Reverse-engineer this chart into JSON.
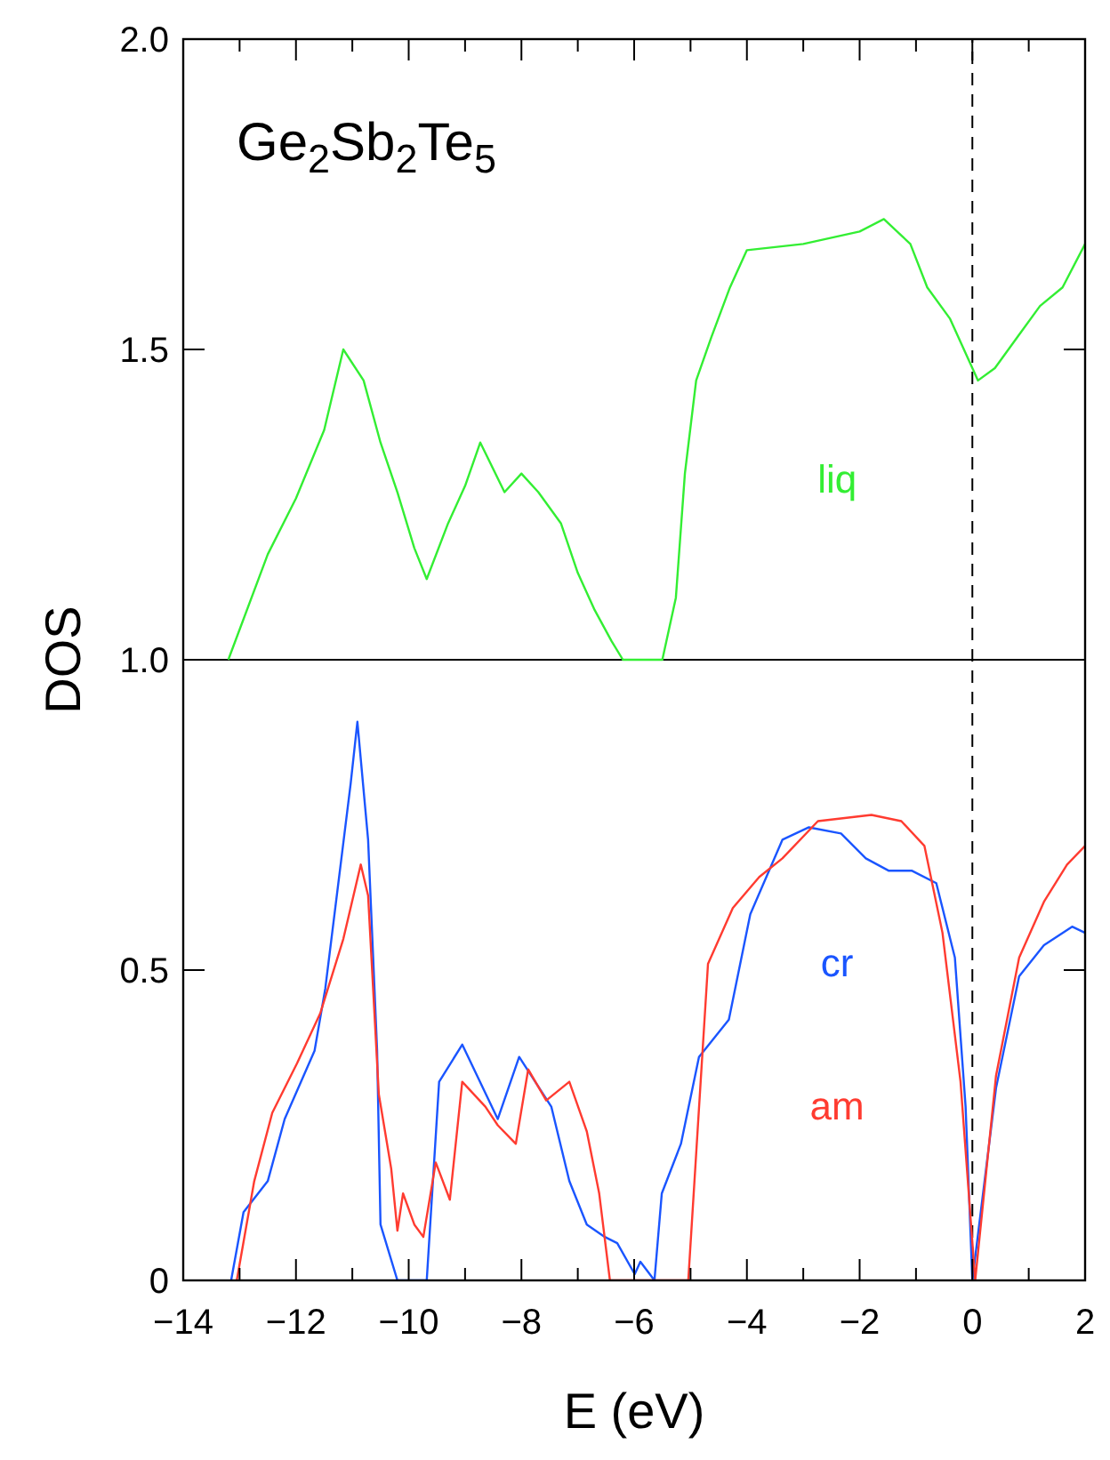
{
  "chart_data": {
    "type": "line",
    "title": "Ge$_{2}$Sb$_{2}$Te$_{5}$",
    "xlabel": "E (eV)",
    "ylabel": "DOS",
    "xlim": [
      -14,
      2
    ],
    "ylim": [
      0,
      2
    ],
    "xticks": [
      {
        "value": -14,
        "label": "−14"
      },
      {
        "value": -13,
        "label": null
      },
      {
        "value": -12,
        "label": "−12"
      },
      {
        "value": -11,
        "label": null
      },
      {
        "value": -10,
        "label": "−10"
      },
      {
        "value": -9,
        "label": null
      },
      {
        "value": -8,
        "label": "−8"
      },
      {
        "value": -7,
        "label": null
      },
      {
        "value": -6,
        "label": "−6"
      },
      {
        "value": -5,
        "label": null
      },
      {
        "value": -4,
        "label": "−4"
      },
      {
        "value": -3,
        "label": null
      },
      {
        "value": -2,
        "label": "−2"
      },
      {
        "value": -1,
        "label": null
      },
      0,
      {
        "value": 1,
        "label": null
      },
      2
    ],
    "yticks": [
      0,
      0.5,
      {
        "value": 1,
        "label": "1.0"
      },
      1.5,
      {
        "value": 2,
        "label": "2.0"
      }
    ],
    "grid": false,
    "ref_lines": [
      {
        "axis": "y",
        "value": 1,
        "color": "#000000",
        "line_style": "solid"
      },
      {
        "axis": "x",
        "value": 0,
        "color": "#000000",
        "line_style": "dashed"
      }
    ],
    "series": [
      {
        "name": "liq",
        "color": "#33ee33",
        "x": [
          -13.2,
          -12.5,
          -12,
          -11.5,
          -11.16,
          -10.8,
          -10.5,
          -10.2,
          -9.9,
          -9.68,
          -9.3,
          -9,
          -8.73,
          -8.3,
          -8,
          -7.7,
          -7.3,
          -7,
          -6.7,
          -6.4,
          -6.2,
          -5.5,
          -5.26,
          -5.1,
          -4.9,
          -4.63,
          -4.3,
          -4,
          -3,
          -2,
          -1.57,
          -1.1,
          -0.8,
          -0.4,
          0.1,
          0.4,
          0.8,
          1.2,
          1.6,
          2
        ],
        "values": [
          1.0,
          1.17,
          1.26,
          1.37,
          1.5,
          1.45,
          1.35,
          1.27,
          1.18,
          1.13,
          1.22,
          1.28,
          1.35,
          1.27,
          1.3,
          1.27,
          1.22,
          1.14,
          1.08,
          1.03,
          1.0,
          1.0,
          1.1,
          1.3,
          1.45,
          1.52,
          1.6,
          1.66,
          1.67,
          1.69,
          1.71,
          1.67,
          1.6,
          1.55,
          1.45,
          1.47,
          1.52,
          1.57,
          1.6,
          1.67
        ]
      },
      {
        "name": "cr",
        "color": "#1a55ff",
        "x": [
          -13.15,
          -12.93,
          -12.5,
          -12.2,
          -11.67,
          -11.48,
          -11.03,
          -10.91,
          -10.72,
          -10.56,
          -10.5,
          -10.2,
          -9.68,
          -9.46,
          -9.05,
          -8.42,
          -8.04,
          -7.47,
          -7.15,
          -6.84,
          -6.52,
          -6.3,
          -5.99,
          -5.89,
          -5.64,
          -5.51,
          -5.17,
          -4.85,
          -4.32,
          -3.94,
          -3.37,
          -2.9,
          -2.33,
          -1.89,
          -1.48,
          -1.07,
          -0.64,
          -0.31,
          -0.12,
          0,
          0.42,
          0.83,
          1.27,
          1.77,
          2
        ],
        "values": [
          0,
          0.11,
          0.16,
          0.26,
          0.37,
          0.47,
          0.8,
          0.9,
          0.71,
          0.37,
          0.09,
          0,
          0,
          0.32,
          0.38,
          0.26,
          0.36,
          0.28,
          0.16,
          0.09,
          0.07,
          0.06,
          0.01,
          0.03,
          0,
          0.14,
          0.22,
          0.36,
          0.42,
          0.59,
          0.71,
          0.73,
          0.72,
          0.68,
          0.66,
          0.66,
          0.64,
          0.52,
          0.28,
          0,
          0.31,
          0.49,
          0.54,
          0.57,
          0.56
        ]
      },
      {
        "name": "am",
        "color": "#ff3b30",
        "x": [
          -13.05,
          -12.74,
          -12.42,
          -11.98,
          -11.57,
          -11.16,
          -10.85,
          -10.72,
          -10.53,
          -10.31,
          -10.2,
          -10.1,
          -9.9,
          -9.74,
          -9.52,
          -9.27,
          -9.05,
          -8.64,
          -8.42,
          -8.1,
          -7.88,
          -7.56,
          -7.15,
          -6.84,
          -6.62,
          -6.43,
          -5.04,
          -4.69,
          -4.25,
          -3.78,
          -3.37,
          -2.74,
          -1.79,
          -1.26,
          -0.85,
          -0.53,
          -0.21,
          0.05,
          0.42,
          0.83,
          1.27,
          1.68,
          2
        ],
        "values": [
          0,
          0.16,
          0.27,
          0.35,
          0.43,
          0.55,
          0.67,
          0.62,
          0.3,
          0.18,
          0.08,
          0.14,
          0.09,
          0.07,
          0.19,
          0.13,
          0.32,
          0.28,
          0.25,
          0.22,
          0.34,
          0.29,
          0.32,
          0.24,
          0.14,
          0,
          0,
          0.51,
          0.6,
          0.65,
          0.68,
          0.74,
          0.75,
          0.74,
          0.7,
          0.56,
          0.32,
          0,
          0.33,
          0.52,
          0.61,
          0.67,
          0.7
        ]
      }
    ]
  }
}
